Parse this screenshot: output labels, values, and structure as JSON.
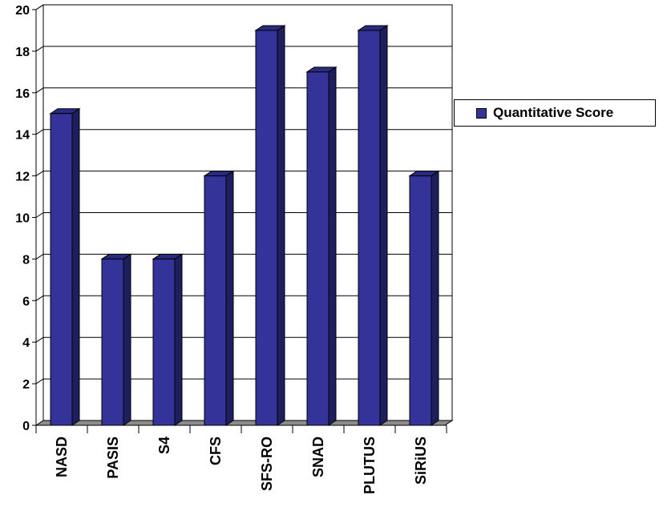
{
  "chart_data": {
    "type": "bar",
    "categories": [
      "NASD",
      "PASIS",
      "S4",
      "CFS",
      "SFS-RO",
      "SNAD",
      "PLUTUS",
      "SiRiUS"
    ],
    "series": [
      {
        "name": "Quantitative Score",
        "values": [
          15,
          8,
          8,
          12,
          19,
          17,
          19,
          12
        ]
      }
    ],
    "ylim": [
      0,
      20
    ],
    "yticks": [
      0,
      2,
      4,
      6,
      8,
      10,
      12,
      14,
      16,
      18,
      20
    ],
    "grid": true,
    "legend": "right",
    "colors": {
      "bar_front": "#333399",
      "bar_side": "#1f1f60",
      "bar_top": "#2a2a80",
      "floor": "#8c8c8c"
    }
  }
}
